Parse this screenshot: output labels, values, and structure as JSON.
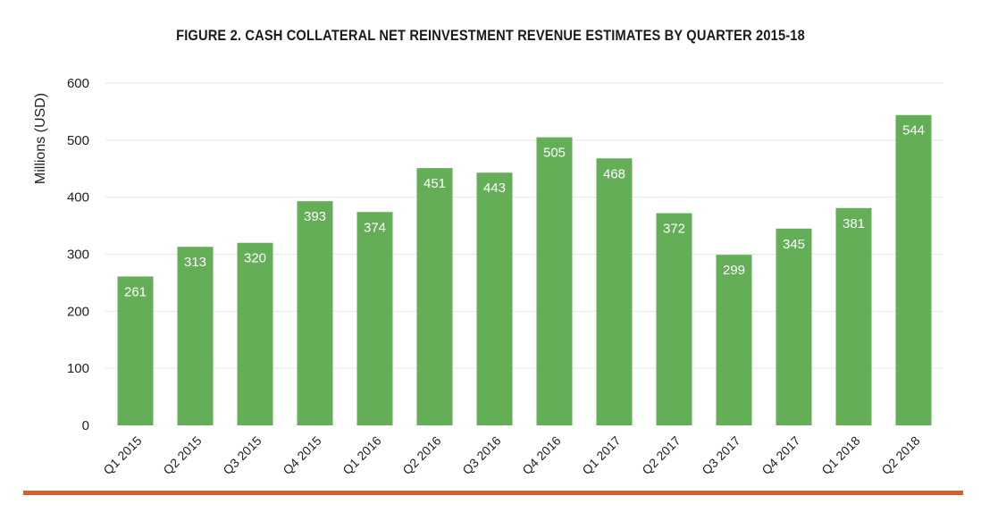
{
  "chart_data": {
    "type": "bar",
    "title": "FIGURE 2. CASH COLLATERAL NET REINVESTMENT REVENUE ESTIMATES BY QUARTER 2015-18",
    "xlabel": "",
    "ylabel": "Millions (USD)",
    "ylim": [
      0,
      600
    ],
    "yticks": [
      0,
      100,
      200,
      300,
      400,
      500,
      600
    ],
    "ytick_labels": [
      "0",
      "100",
      "200",
      "300",
      "400",
      "500",
      "600"
    ],
    "grid": true,
    "legend": "none",
    "categories": [
      "Q1 2015",
      "Q2 2015",
      "Q3 2015",
      "Q4 2015",
      "Q1 2016",
      "Q2 2016",
      "Q3 2016",
      "Q4 2016",
      "Q1 2017",
      "Q2 2017",
      "Q3 2017",
      "Q4 2017",
      "Q1 2018",
      "Q2 2018"
    ],
    "values": [
      261,
      313,
      320,
      393,
      374,
      451,
      443,
      505,
      468,
      372,
      299,
      345,
      381,
      544
    ],
    "bar_color": "#63ae57",
    "gridline_color": "#e6e6e6",
    "accent_rule_color": "#d65f2e"
  }
}
